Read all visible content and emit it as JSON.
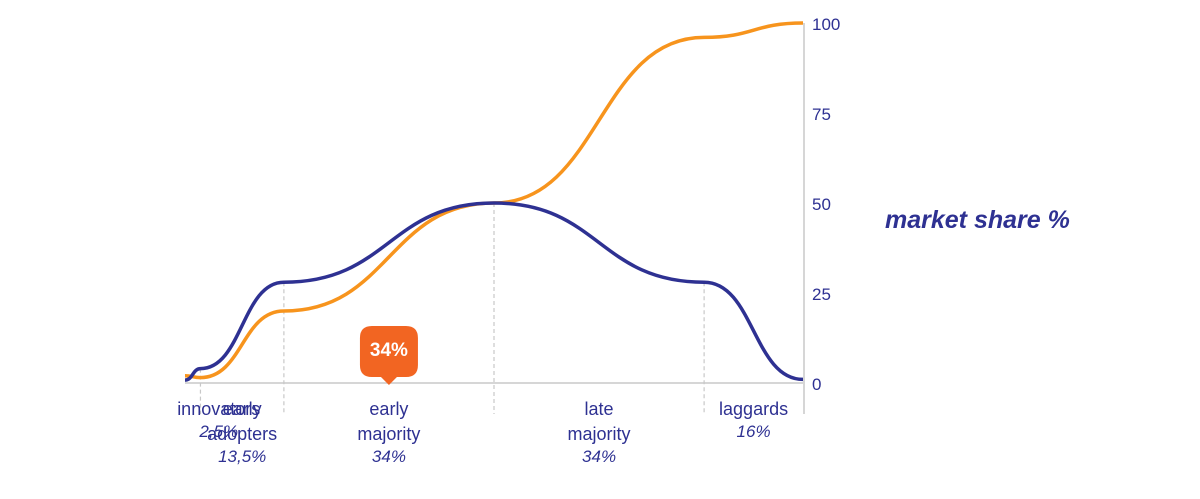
{
  "chart_data": {
    "type": "line",
    "ylabel": "market share %",
    "ylim": [
      0,
      100
    ],
    "yticks": [
      "100",
      "75",
      "50",
      "25",
      "0"
    ],
    "segments": [
      {
        "lines": [
          "innovators"
        ],
        "percent": "2,5%",
        "share": 2.5
      },
      {
        "lines": [
          "early",
          "adopters"
        ],
        "percent": "13,5%",
        "share": 13.5
      },
      {
        "lines": [
          "early",
          "majority"
        ],
        "percent": "34%",
        "share": 34
      },
      {
        "lines": [
          "late",
          "majority"
        ],
        "percent": "34%",
        "share": 34
      },
      {
        "lines": [
          "laggards"
        ],
        "percent": "16%",
        "share": 16
      }
    ],
    "highlight": {
      "segment": "early majority",
      "label": "34%"
    },
    "series": [
      {
        "kind": "adoption bell curve",
        "color": "#2e3192",
        "points": [
          [
            0,
            0.8
          ],
          [
            2.5,
            4
          ],
          [
            16,
            28
          ],
          [
            50,
            50
          ],
          [
            84,
            28
          ],
          [
            100,
            1
          ]
        ]
      },
      {
        "kind": "cumulative market share",
        "color": "#f7941d",
        "points": [
          [
            0,
            2
          ],
          [
            2.5,
            1.5
          ],
          [
            16,
            20
          ],
          [
            50,
            50
          ],
          [
            84,
            96
          ],
          [
            100,
            100
          ]
        ]
      }
    ],
    "grid": false,
    "legend": "none"
  }
}
